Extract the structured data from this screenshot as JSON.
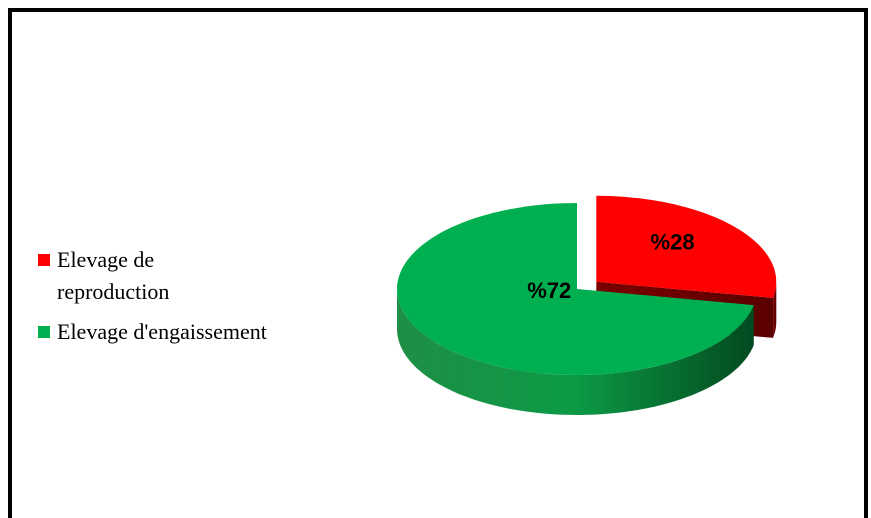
{
  "chart_data": {
    "type": "pie3d",
    "categories": [
      "Elevage de reproduction",
      "Elevage d'engaissement"
    ],
    "values": [
      28,
      72
    ],
    "value_labels": [
      "%28",
      "%72"
    ],
    "colors": [
      "#ff0000",
      "#00b050"
    ],
    "legend": "left"
  }
}
